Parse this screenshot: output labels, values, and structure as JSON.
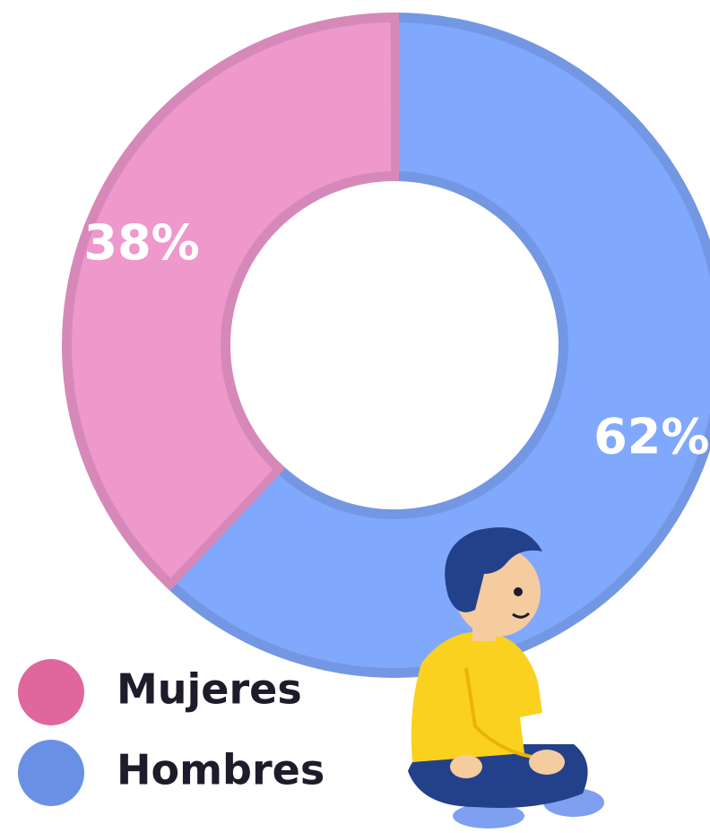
{
  "chart_data": {
    "type": "donut",
    "categories": [
      "Hombres",
      "Mujeres"
    ],
    "values": [
      62,
      38
    ],
    "value_labels": [
      "62%",
      "38%"
    ],
    "colors": [
      "#80a8fc",
      "#ee98cc"
    ],
    "legend_order": [
      "Mujeres",
      "Hombres"
    ],
    "legend_colors": [
      "#e0669e",
      "#6a90e6"
    ]
  }
}
